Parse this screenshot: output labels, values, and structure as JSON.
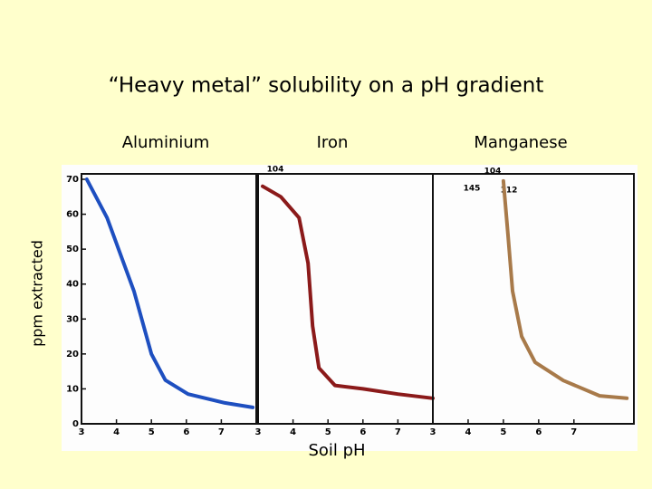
{
  "title": "“Heavy metal” solubility on a pH  gradient",
  "ylabel": "ppm extracted",
  "xlabel": "Soil pH",
  "chart_data": [
    {
      "type": "line",
      "title": "Aluminium",
      "color": "#1e4fc0",
      "x": [
        3.15,
        3.73,
        4.5,
        5.0,
        5.4,
        6.05,
        7.1,
        7.9
      ],
      "values": [
        70,
        59,
        38,
        20,
        12.5,
        8.5,
        6,
        4.7
      ],
      "xlim": [
        3,
        8
      ],
      "xticks": [
        3,
        4,
        5,
        6,
        7
      ],
      "ylim": [
        0,
        70
      ],
      "yticks": [
        0,
        10,
        20,
        30,
        40,
        50,
        60,
        70
      ]
    },
    {
      "type": "line",
      "title": "Iron",
      "color": "#8b1a1a",
      "x": [
        3.13,
        3.65,
        4.17,
        4.43,
        4.56,
        4.74,
        5.2,
        6.0,
        7.0,
        8.0
      ],
      "values": [
        68,
        65,
        59,
        46,
        28,
        16,
        11,
        10,
        8.5,
        7.3
      ],
      "xlim": [
        3,
        8
      ],
      "xticks": [
        3,
        4,
        5,
        6,
        7
      ],
      "ylim": [
        0,
        70
      ],
      "annotations": [
        "104"
      ]
    },
    {
      "type": "line",
      "title": "Manganese",
      "color": "#a87a4a",
      "x": [
        5.0,
        5.13,
        5.26,
        5.52,
        5.9,
        6.7,
        7.73,
        8.5
      ],
      "values": [
        69.5,
        54,
        38,
        25,
        17.6,
        12.4,
        8,
        7.3
      ],
      "xlim": [
        3,
        8.7
      ],
      "xticks": [
        3,
        4,
        5,
        6,
        7
      ],
      "ylim": [
        0,
        70
      ],
      "annotations": [
        "104",
        "145",
        "112"
      ]
    }
  ]
}
